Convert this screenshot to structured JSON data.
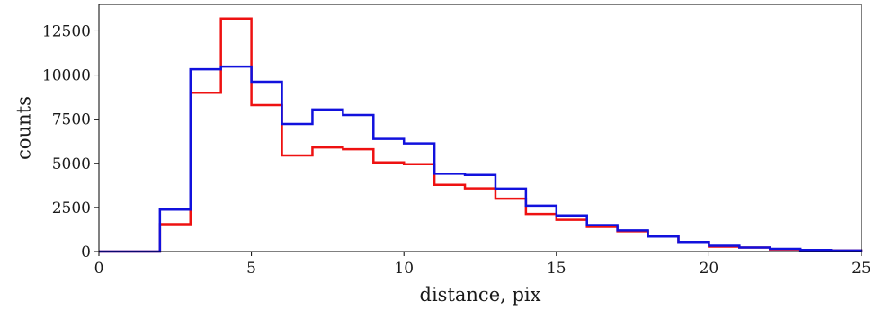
{
  "chart_data": {
    "type": "histogram-step",
    "xlabel": "distance, pix",
    "ylabel": "counts",
    "xlim": [
      0,
      25
    ],
    "ylim": [
      0,
      14000
    ],
    "xticks": [
      0,
      5,
      10,
      15,
      20,
      25
    ],
    "yticks": [
      0,
      2500,
      5000,
      7500,
      10000,
      12500
    ],
    "grid": false,
    "bin_edges": [
      0,
      1,
      2,
      3,
      4,
      5,
      6,
      7,
      8,
      9,
      10,
      11,
      12,
      13,
      14,
      15,
      16,
      17,
      18,
      19,
      20,
      21,
      22,
      23,
      24,
      25
    ],
    "series": [
      {
        "color": "#ee1111",
        "values": [
          0,
          0,
          1550,
          9000,
          13200,
          8300,
          5450,
          5900,
          5800,
          5050,
          4950,
          3780,
          3580,
          3000,
          2130,
          1800,
          1400,
          1150,
          850,
          550,
          280,
          230,
          120,
          90,
          60
        ]
      },
      {
        "color": "#1111dd",
        "values": [
          0,
          0,
          2380,
          10330,
          10480,
          9620,
          7230,
          8050,
          7740,
          6380,
          6130,
          4410,
          4340,
          3570,
          2600,
          2050,
          1500,
          1200,
          850,
          550,
          330,
          230,
          150,
          90,
          60
        ]
      }
    ]
  }
}
